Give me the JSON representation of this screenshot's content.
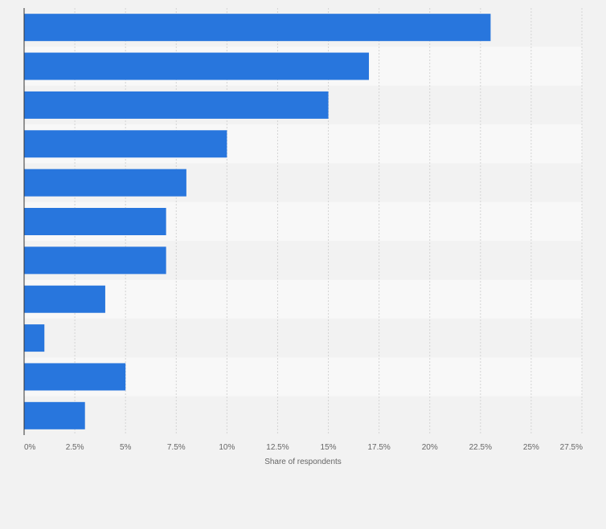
{
  "chart_data": {
    "type": "bar",
    "orientation": "horizontal",
    "categories": [
      "",
      "",
      "",
      "",
      "",
      "",
      "",
      "",
      "",
      "",
      ""
    ],
    "values": [
      23,
      17,
      15,
      10,
      8,
      7,
      7,
      4,
      1,
      5,
      3
    ],
    "xlabel": "Share of respondents",
    "xlim": [
      0,
      27.5
    ],
    "ticks": [
      0,
      2.5,
      5,
      7.5,
      10,
      12.5,
      15,
      17.5,
      20,
      22.5,
      25,
      27.5
    ],
    "tick_labels": [
      "0%",
      "2.5%",
      "5%",
      "7.5%",
      "10%",
      "12.5%",
      "15%",
      "17.5%",
      "20%",
      "22.5%",
      "25%",
      "27.5%"
    ],
    "grid": true,
    "legend": "none",
    "colors": {
      "bar": "#2876dd",
      "band_dark": "#f2f2f2",
      "band_light": "#f8f8f8",
      "grid": "#d4d4d4",
      "axis": "#333333",
      "text": "#666666"
    }
  }
}
